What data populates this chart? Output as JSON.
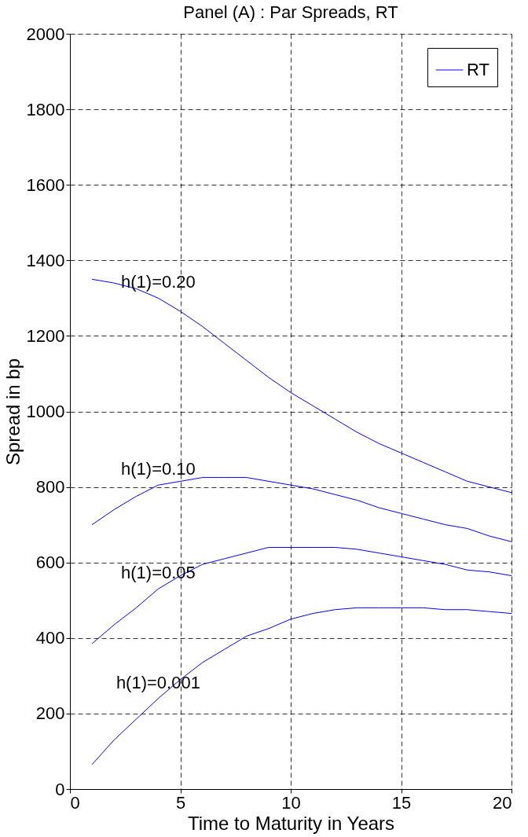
{
  "chart_data": {
    "type": "line",
    "title": "Panel (A) : Par Spreads, RT",
    "xlabel": "Time to Maturity in Years",
    "ylabel": "Spread in bp",
    "x": [
      1,
      2,
      3,
      4,
      5,
      6,
      7,
      8,
      9,
      10,
      11,
      12,
      13,
      14,
      15,
      16,
      17,
      18,
      19,
      20
    ],
    "series": [
      {
        "name": "RT",
        "color": "#0000ff",
        "values": [
          1350,
          1340,
          1325,
          1300,
          1265,
          1225,
          1180,
          1135,
          1090,
          1050,
          1015,
          980,
          945,
          915,
          890,
          865,
          840,
          815,
          800,
          785
        ]
      },
      {
        "color": "#0000ff",
        "values": [
          700,
          740,
          775,
          805,
          815,
          825,
          825,
          825,
          815,
          805,
          795,
          780,
          765,
          745,
          730,
          715,
          700,
          690,
          670,
          655
        ]
      },
      {
        "color": "#0000ff",
        "values": [
          385,
          435,
          480,
          530,
          565,
          595,
          610,
          625,
          640,
          640,
          640,
          640,
          635,
          625,
          615,
          605,
          595,
          580,
          575,
          565
        ]
      },
      {
        "color": "#0000ff",
        "values": [
          65,
          130,
          185,
          240,
          290,
          335,
          370,
          405,
          425,
          450,
          465,
          475,
          480,
          480,
          480,
          480,
          475,
          475,
          470,
          465
        ]
      }
    ],
    "annotations": [
      "h(1)=0.20",
      "h(1)=0.10",
      "h(1)=0.05",
      "h(1)=0.001"
    ],
    "xlim": [
      0,
      20
    ],
    "xticks": [
      0,
      5,
      10,
      15,
      20
    ],
    "ylim": [
      0,
      2000
    ],
    "yticks": [
      0,
      200,
      400,
      600,
      800,
      {
        "value": 1000,
        "label": "1000"
      },
      {
        "value": 1200,
        "label": "1200"
      },
      {
        "value": 1400,
        "label": "1400"
      },
      {
        "value": 1600,
        "label": "1600"
      },
      {
        "value": 1800,
        "label": "1800"
      },
      {
        "value": 2000,
        "label": "2000"
      }
    ],
    "grid": true,
    "legend": "top right",
    "marker": "none",
    "line_style": "solid"
  }
}
